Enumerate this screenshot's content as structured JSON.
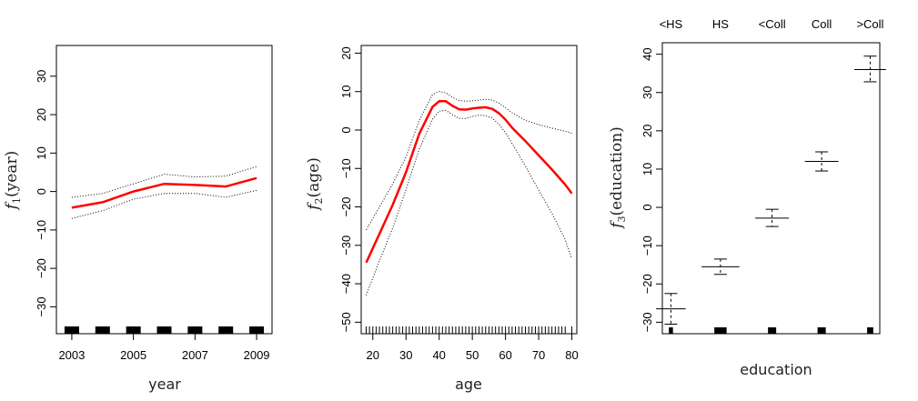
{
  "chart_data": [
    {
      "type": "line",
      "title": "",
      "xlabel": "year",
      "ylabel_func": "f",
      "ylabel_sub": "1",
      "ylabel_arg": "(year)",
      "xlim": [
        2002.5,
        2009.5
      ],
      "ylim": [
        -37,
        38
      ],
      "xticks": [
        2003,
        2005,
        2007,
        2009
      ],
      "yticks": [
        -30,
        -20,
        -10,
        0,
        10,
        20,
        30
      ],
      "x": [
        2003,
        2004,
        2005,
        2006,
        2007,
        2008,
        2009
      ],
      "series": [
        {
          "name": "fit",
          "values": [
            -4.2,
            -2.8,
            0.0,
            2.0,
            1.7,
            1.3,
            3.5
          ],
          "color": "#ff0000",
          "style": "solid"
        },
        {
          "name": "upper",
          "values": [
            -1.5,
            -0.5,
            2.0,
            4.5,
            3.8,
            4.0,
            6.5
          ],
          "color": "#000000",
          "style": "dotted"
        },
        {
          "name": "lower",
          "values": [
            -7.0,
            -5.0,
            -2.0,
            -0.5,
            -0.5,
            -1.5,
            0.3
          ],
          "color": "#000000",
          "style": "dotted"
        }
      ],
      "rug": [
        2003,
        2004,
        2005,
        2006,
        2007,
        2008,
        2009
      ],
      "rug_style": "block"
    },
    {
      "type": "line",
      "title": "",
      "xlabel": "age",
      "ylabel_func": "f",
      "ylabel_sub": "2",
      "ylabel_arg": "(age)",
      "xlim": [
        16.5,
        81.5
      ],
      "ylim": [
        -53,
        22
      ],
      "xticks": [
        20,
        30,
        40,
        50,
        60,
        70,
        80
      ],
      "yticks": [
        -50,
        -40,
        -30,
        -20,
        -10,
        0,
        10,
        20
      ],
      "x": [
        18,
        22,
        26,
        30,
        34,
        38,
        40,
        42,
        44,
        46,
        48,
        50,
        52,
        54,
        56,
        58,
        60,
        62,
        66,
        70,
        74,
        78,
        80
      ],
      "series": [
        {
          "name": "fit",
          "values": [
            -34.5,
            -27,
            -19.5,
            -11,
            -1,
            6,
            7.5,
            7.5,
            6.3,
            5.4,
            5.3,
            5.6,
            5.8,
            5.9,
            5.5,
            4.4,
            2.7,
            0.6,
            -2.9,
            -6.6,
            -10.3,
            -14.2,
            -16.5
          ],
          "color": "#ff0000",
          "style": "solid"
        },
        {
          "name": "upper",
          "values": [
            -26,
            -20,
            -14,
            -7,
            2.5,
            9.3,
            10,
            9.7,
            8.5,
            7.7,
            7.5,
            7.6,
            7.8,
            8.0,
            7.8,
            7.0,
            5.8,
            4.5,
            2.5,
            1.4,
            0.5,
            -0.3,
            -0.8
          ],
          "color": "#000000",
          "style": "dotted"
        },
        {
          "name": "lower",
          "values": [
            -43,
            -34,
            -25.5,
            -15.5,
            -5,
            2.8,
            4.9,
            5.1,
            4.0,
            3.0,
            3.0,
            3.5,
            3.9,
            3.7,
            3.1,
            1.5,
            -0.7,
            -3.5,
            -9.4,
            -15.7,
            -21.7,
            -28.5,
            -33.5
          ],
          "color": "#000000",
          "style": "dotted"
        }
      ],
      "rug": [
        18,
        19,
        20,
        21,
        22,
        23,
        24,
        25,
        26,
        27,
        28,
        29,
        30,
        31,
        32,
        33,
        34,
        35,
        36,
        37,
        38,
        39,
        40,
        41,
        42,
        43,
        44,
        45,
        46,
        47,
        48,
        49,
        50,
        51,
        52,
        53,
        54,
        55,
        56,
        57,
        58,
        59,
        60,
        61,
        62,
        63,
        64,
        65,
        66,
        67,
        68,
        69,
        70,
        71,
        72,
        73,
        74,
        75,
        76,
        77,
        78,
        80
      ],
      "rug_style": "line"
    },
    {
      "type": "bar",
      "title": "",
      "xlabel": "education",
      "ylabel_func": "f",
      "ylabel_sub": "3",
      "ylabel_arg": "(education)",
      "ylim": [
        -33,
        43
      ],
      "yticks": [
        -30,
        -20,
        -10,
        0,
        10,
        20,
        30,
        40
      ],
      "categories": [
        "<HS",
        "HS",
        "<Coll",
        "Coll",
        ">Coll"
      ],
      "values": [
        -26.5,
        -15.5,
        -2.8,
        12.0,
        36.0
      ],
      "upper": [
        -22.5,
        -13.5,
        -0.5,
        14.5,
        39.5
      ],
      "lower": [
        -30.5,
        -17.5,
        -5.0,
        9.5,
        32.8
      ],
      "rug_widths": [
        0.02,
        0.06,
        0.04,
        0.04,
        0.03
      ]
    }
  ]
}
